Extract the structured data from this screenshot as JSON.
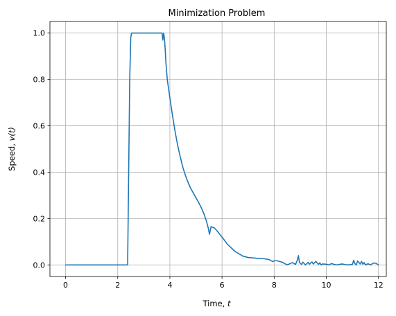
{
  "chart_data": {
    "type": "line",
    "title": "Minimization Problem",
    "xlabel_text": "Time, ",
    "xlabel_var": "t",
    "ylabel_text": "Speed, ",
    "ylabel_var": "v(t)",
    "xlim": [
      -0.6,
      12.3
    ],
    "ylim": [
      -0.05,
      1.05
    ],
    "grid": true,
    "x_ticks": [
      0,
      2,
      4,
      6,
      8,
      10,
      12
    ],
    "x_tick_labels": [
      "0",
      "2",
      "4",
      "6",
      "8",
      "10",
      "12"
    ],
    "y_ticks": [
      0.0,
      0.2,
      0.4,
      0.6,
      0.8,
      1.0
    ],
    "y_tick_labels": [
      "0.0",
      "0.2",
      "0.4",
      "0.6",
      "0.8",
      "1.0"
    ],
    "series": [
      {
        "color": "#1f77b4",
        "x": [
          0,
          1,
          2,
          2.38,
          2.42,
          2.46,
          2.5,
          2.53,
          2.55,
          2.6,
          3.0,
          3.5,
          3.7,
          3.73,
          3.76,
          3.79,
          3.82,
          3.85,
          3.9,
          4.0,
          4.1,
          4.2,
          4.3,
          4.4,
          4.5,
          4.6,
          4.7,
          4.8,
          4.9,
          5.0,
          5.1,
          5.2,
          5.3,
          5.4,
          5.47,
          5.52,
          5.58,
          5.7,
          5.8,
          6.0,
          6.2,
          6.5,
          6.8,
          7.0,
          7.3,
          7.6,
          7.8,
          7.95,
          8.0,
          8.1,
          8.3,
          8.5,
          8.7,
          8.82,
          8.88,
          8.93,
          8.97,
          9.05,
          9.1,
          9.2,
          9.3,
          9.35,
          9.45,
          9.5,
          9.6,
          9.7,
          9.75,
          9.8,
          9.85,
          10.0,
          10.1,
          10.2,
          10.3,
          10.4,
          10.6,
          10.8,
          11.0,
          11.05,
          11.1,
          11.15,
          11.2,
          11.3,
          11.35,
          11.4,
          11.45,
          11.5,
          11.6,
          11.7,
          11.8,
          11.9,
          12.0
        ],
        "y": [
          0.0,
          0.0,
          0.0,
          0.0,
          0.4,
          0.8,
          0.98,
          1.0,
          1.0,
          1.0,
          1.0,
          1.0,
          1.0,
          0.97,
          1.0,
          0.98,
          0.93,
          0.87,
          0.8,
          0.72,
          0.645,
          0.575,
          0.515,
          0.465,
          0.42,
          0.385,
          0.355,
          0.33,
          0.31,
          0.29,
          0.27,
          0.248,
          0.222,
          0.19,
          0.16,
          0.132,
          0.165,
          0.16,
          0.148,
          0.12,
          0.09,
          0.058,
          0.038,
          0.032,
          0.029,
          0.027,
          0.023,
          0.014,
          0.018,
          0.018,
          0.012,
          0.0,
          0.01,
          0.002,
          0.018,
          0.04,
          0.01,
          0.002,
          0.012,
          0.0,
          0.011,
          0.003,
          0.013,
          0.004,
          0.015,
          0.002,
          0.009,
          0.0,
          0.004,
          0.003,
          0.0,
          0.006,
          0.002,
          0.0,
          0.004,
          0.0,
          0.002,
          0.02,
          0.005,
          0.0,
          0.017,
          0.004,
          0.015,
          0.003,
          0.01,
          0.0,
          0.005,
          0.0,
          0.008,
          0.007,
          0.0
        ]
      }
    ]
  }
}
